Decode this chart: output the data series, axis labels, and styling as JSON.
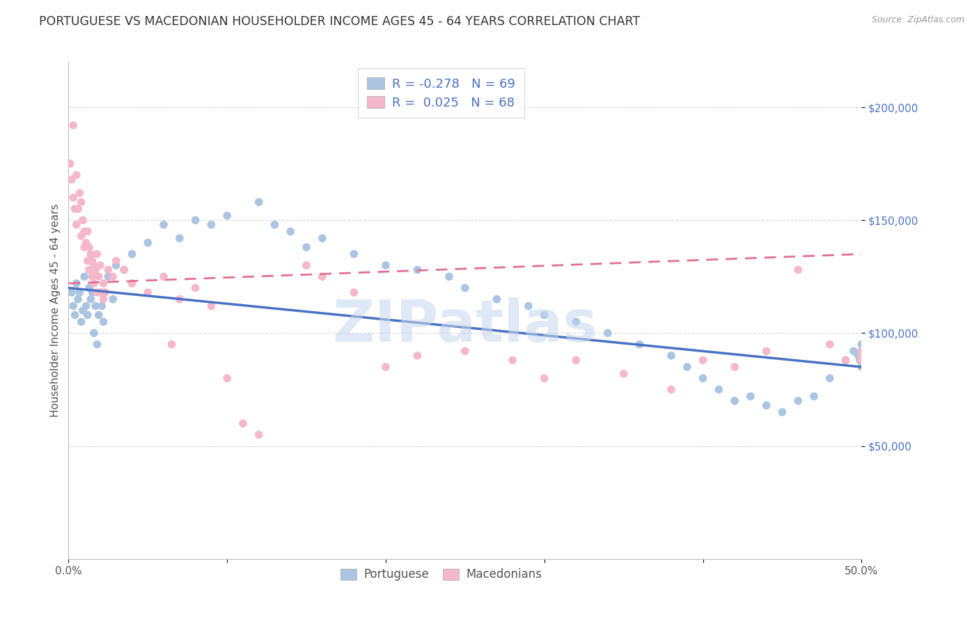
{
  "title": "PORTUGUESE VS MACEDONIAN HOUSEHOLDER INCOME AGES 45 - 64 YEARS CORRELATION CHART",
  "source": "Source: ZipAtlas.com",
  "ylabel": "Householder Income Ages 45 - 64 years",
  "watermark": "ZIPatlas",
  "xlim": [
    0.0,
    0.5
  ],
  "ylim": [
    0,
    220000
  ],
  "yticks": [
    50000,
    100000,
    150000,
    200000
  ],
  "ytick_labels": [
    "$50,000",
    "$100,000",
    "$150,000",
    "$200,000"
  ],
  "xtick_positions": [
    0.0,
    0.1,
    0.2,
    0.3,
    0.4,
    0.5
  ],
  "xtick_labels": [
    "0.0%",
    "",
    "",
    "",
    "",
    "50.0%"
  ],
  "portuguese_R": -0.278,
  "portuguese_N": 69,
  "macedonian_R": 0.025,
  "macedonian_N": 68,
  "portuguese_color": "#aac4e2",
  "macedonian_color": "#f5b8cb",
  "portuguese_line_color": "#4a72c4",
  "macedonian_line_color": "#e07090",
  "background_color": "#ffffff",
  "grid_color": "#d8d8d8",
  "title_fontsize": 12.5,
  "ytick_color": "#4a72c4",
  "xtick_color": "#555555",
  "portuguese_x": [
    0.002,
    0.003,
    0.004,
    0.005,
    0.006,
    0.007,
    0.008,
    0.009,
    0.01,
    0.011,
    0.012,
    0.013,
    0.014,
    0.015,
    0.016,
    0.017,
    0.018,
    0.019,
    0.02,
    0.021,
    0.022,
    0.023,
    0.025,
    0.028,
    0.03,
    0.035,
    0.04,
    0.05,
    0.06,
    0.07,
    0.08,
    0.09,
    0.1,
    0.12,
    0.13,
    0.14,
    0.15,
    0.16,
    0.18,
    0.2,
    0.22,
    0.24,
    0.25,
    0.27,
    0.29,
    0.3,
    0.32,
    0.34,
    0.36,
    0.38,
    0.39,
    0.4,
    0.41,
    0.42,
    0.43,
    0.44,
    0.45,
    0.46,
    0.47,
    0.48,
    0.49,
    0.495,
    0.498,
    0.499,
    0.5,
    0.5,
    0.5,
    0.5,
    0.5
  ],
  "portuguese_y": [
    118000,
    112000,
    108000,
    122000,
    115000,
    118000,
    105000,
    110000,
    125000,
    112000,
    108000,
    120000,
    115000,
    118000,
    100000,
    112000,
    95000,
    108000,
    118000,
    112000,
    105000,
    118000,
    125000,
    115000,
    130000,
    128000,
    135000,
    140000,
    148000,
    142000,
    150000,
    148000,
    152000,
    158000,
    148000,
    145000,
    138000,
    142000,
    135000,
    130000,
    128000,
    125000,
    120000,
    115000,
    112000,
    108000,
    105000,
    100000,
    95000,
    90000,
    85000,
    80000,
    75000,
    70000,
    72000,
    68000,
    65000,
    70000,
    72000,
    80000,
    88000,
    92000,
    90000,
    88000,
    85000,
    90000,
    92000,
    95000,
    88000
  ],
  "macedonian_x": [
    0.001,
    0.002,
    0.003,
    0.003,
    0.004,
    0.005,
    0.005,
    0.006,
    0.007,
    0.008,
    0.008,
    0.009,
    0.01,
    0.01,
    0.011,
    0.012,
    0.012,
    0.013,
    0.013,
    0.014,
    0.015,
    0.015,
    0.016,
    0.016,
    0.017,
    0.018,
    0.018,
    0.019,
    0.02,
    0.021,
    0.022,
    0.022,
    0.023,
    0.025,
    0.028,
    0.03,
    0.035,
    0.04,
    0.05,
    0.06,
    0.065,
    0.07,
    0.08,
    0.09,
    0.1,
    0.11,
    0.12,
    0.15,
    0.16,
    0.18,
    0.2,
    0.22,
    0.25,
    0.28,
    0.3,
    0.32,
    0.35,
    0.38,
    0.4,
    0.42,
    0.44,
    0.46,
    0.48,
    0.49,
    0.5,
    0.5,
    0.5,
    0.5
  ],
  "macedonian_y": [
    175000,
    168000,
    192000,
    160000,
    155000,
    170000,
    148000,
    155000,
    162000,
    158000,
    143000,
    150000,
    145000,
    138000,
    140000,
    145000,
    132000,
    138000,
    128000,
    135000,
    132000,
    125000,
    130000,
    122000,
    128000,
    135000,
    118000,
    125000,
    130000,
    118000,
    122000,
    115000,
    118000,
    128000,
    125000,
    132000,
    128000,
    122000,
    118000,
    125000,
    95000,
    115000,
    120000,
    112000,
    80000,
    60000,
    55000,
    130000,
    125000,
    118000,
    85000,
    90000,
    92000,
    88000,
    80000,
    88000,
    82000,
    75000,
    88000,
    85000,
    92000,
    128000,
    95000,
    88000,
    88000,
    90000,
    92000,
    88000
  ],
  "legend_portuguese_label": "Portuguese",
  "legend_macedonian_label": "Macedonians"
}
